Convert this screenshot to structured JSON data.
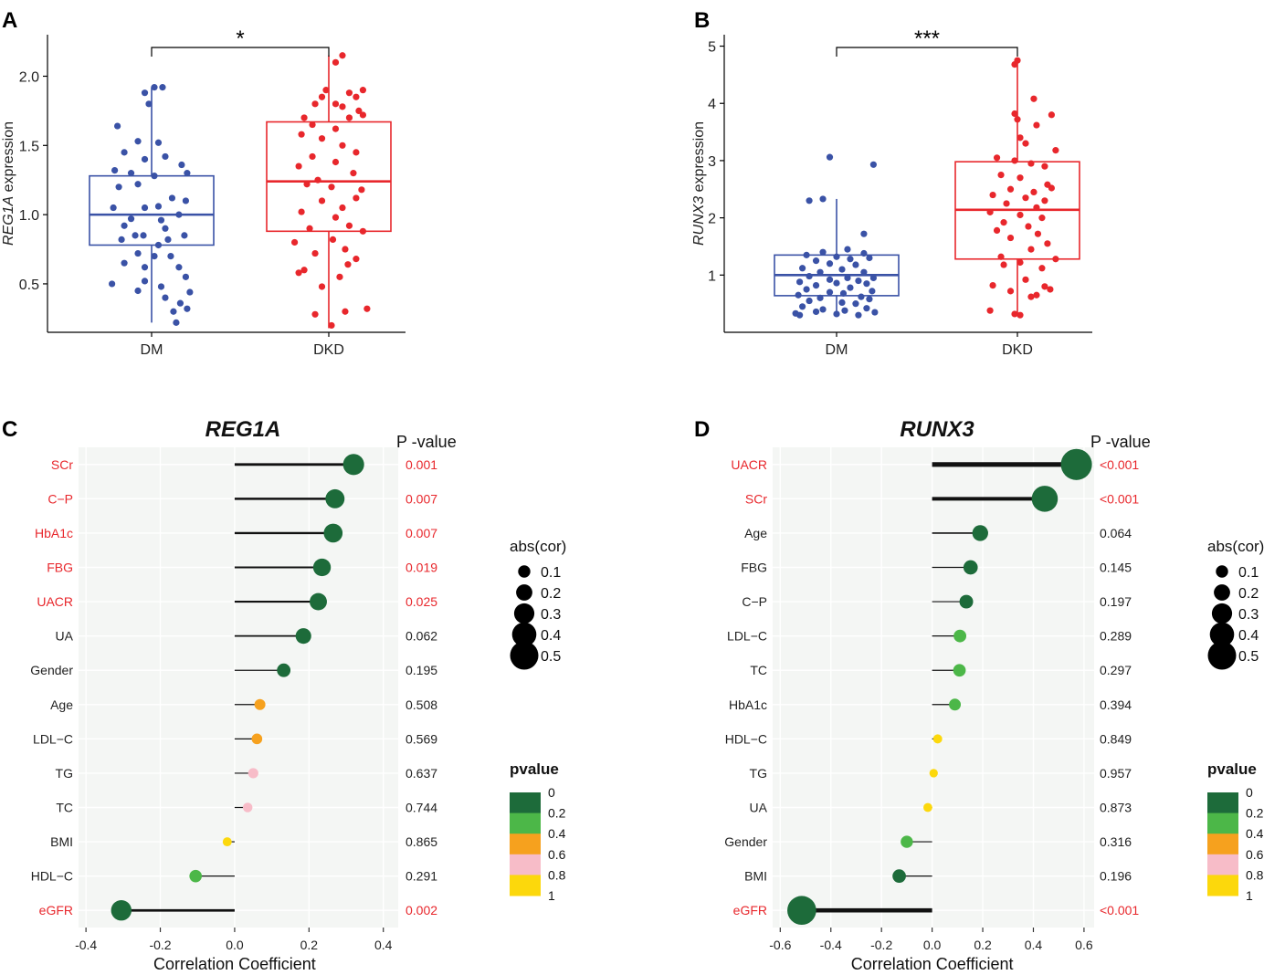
{
  "chart_data": [
    {
      "panel": "A",
      "type": "box-jitter",
      "ylabel_gene": "REG1A",
      "ylabel_suffix": " expression",
      "categories": [
        "DM",
        "DKD"
      ],
      "ylim": [
        0.15,
        2.3
      ],
      "yticks": [
        "0.5",
        "1.0",
        "1.5",
        "2.0"
      ],
      "significance": "*",
      "boxes": [
        {
          "name": "DM",
          "color": "#3a52a6",
          "min": 0.22,
          "q1": 0.78,
          "median": 1.0,
          "q3": 1.28,
          "max": 1.92
        },
        {
          "name": "DKD",
          "color": "#e8272c",
          "min": 0.18,
          "q1": 0.88,
          "median": 1.24,
          "q3": 1.67,
          "max": 2.15
        }
      ],
      "points": {
        "DM": [
          [
            0.02,
            1.92
          ],
          [
            -0.05,
            1.88
          ],
          [
            -0.02,
            1.8
          ],
          [
            0.08,
            1.92
          ],
          [
            -0.25,
            1.64
          ],
          [
            -0.1,
            1.53
          ],
          [
            0.05,
            1.52
          ],
          [
            0.1,
            1.42
          ],
          [
            -0.2,
            1.45
          ],
          [
            -0.05,
            1.4
          ],
          [
            0.22,
            1.36
          ],
          [
            0.26,
            1.3
          ],
          [
            -0.27,
            1.32
          ],
          [
            -0.15,
            1.3
          ],
          [
            0.02,
            1.28
          ],
          [
            -0.24,
            1.2
          ],
          [
            -0.1,
            1.22
          ],
          [
            0.15,
            1.12
          ],
          [
            0.25,
            1.1
          ],
          [
            -0.28,
            1.05
          ],
          [
            -0.05,
            1.05
          ],
          [
            0.05,
            1.06
          ],
          [
            0.2,
            1.0
          ],
          [
            -0.15,
            0.97
          ],
          [
            0.07,
            0.96
          ],
          [
            -0.2,
            0.92
          ],
          [
            0.1,
            0.9
          ],
          [
            -0.12,
            0.85
          ],
          [
            -0.06,
            0.85
          ],
          [
            -0.22,
            0.82
          ],
          [
            0.12,
            0.82
          ],
          [
            0.24,
            0.85
          ],
          [
            0.05,
            0.78
          ],
          [
            -0.1,
            0.72
          ],
          [
            0.02,
            0.7
          ],
          [
            0.14,
            0.7
          ],
          [
            -0.2,
            0.65
          ],
          [
            0.2,
            0.62
          ],
          [
            -0.05,
            0.62
          ],
          [
            0.25,
            0.55
          ],
          [
            0.07,
            0.48
          ],
          [
            -0.1,
            0.45
          ],
          [
            0.28,
            0.44
          ],
          [
            0.1,
            0.4
          ],
          [
            -0.05,
            0.52
          ],
          [
            0.21,
            0.36
          ],
          [
            0.26,
            0.32
          ],
          [
            0.16,
            0.3
          ],
          [
            -0.29,
            0.5
          ],
          [
            0.18,
            0.22
          ]
        ],
        "DKD": [
          [
            0.1,
            2.15
          ],
          [
            0.05,
            2.1
          ],
          [
            -0.02,
            1.9
          ],
          [
            0.15,
            1.88
          ],
          [
            0.25,
            1.9
          ],
          [
            -0.05,
            1.85
          ],
          [
            0.2,
            1.85
          ],
          [
            0.05,
            1.8
          ],
          [
            0.1,
            1.78
          ],
          [
            -0.1,
            1.8
          ],
          [
            0.22,
            1.75
          ],
          [
            -0.18,
            1.7
          ],
          [
            -0.12,
            1.65
          ],
          [
            0.05,
            1.62
          ],
          [
            0.15,
            1.7
          ],
          [
            0.25,
            1.72
          ],
          [
            -0.2,
            1.58
          ],
          [
            -0.05,
            1.55
          ],
          [
            0.1,
            1.5
          ],
          [
            0.2,
            1.45
          ],
          [
            -0.12,
            1.42
          ],
          [
            0.05,
            1.38
          ],
          [
            -0.22,
            1.35
          ],
          [
            0.18,
            1.3
          ],
          [
            -0.08,
            1.25
          ],
          [
            0.02,
            1.2
          ],
          [
            -0.16,
            1.22
          ],
          [
            0.24,
            1.18
          ],
          [
            -0.05,
            1.1
          ],
          [
            0.1,
            1.05
          ],
          [
            0.2,
            1.12
          ],
          [
            -0.2,
            1.02
          ],
          [
            0.05,
            0.98
          ],
          [
            0.15,
            0.92
          ],
          [
            -0.14,
            0.9
          ],
          [
            0.25,
            0.88
          ],
          [
            -0.25,
            0.8
          ],
          [
            0.03,
            0.82
          ],
          [
            0.12,
            0.75
          ],
          [
            -0.1,
            0.72
          ],
          [
            0.2,
            0.68
          ],
          [
            -0.18,
            0.6
          ],
          [
            0.14,
            0.64
          ],
          [
            -0.22,
            0.58
          ],
          [
            0.08,
            0.55
          ],
          [
            -0.05,
            0.48
          ],
          [
            0.28,
            0.32
          ],
          [
            0.12,
            0.3
          ],
          [
            -0.1,
            0.28
          ],
          [
            0.02,
            0.2
          ]
        ]
      }
    },
    {
      "panel": "B",
      "type": "box-jitter",
      "ylabel_gene": "RUNX3",
      "ylabel_suffix": " expression",
      "categories": [
        "DM",
        "DKD"
      ],
      "ylim": [
        0,
        5.2
      ],
      "yticks": [
        "1",
        "2",
        "3",
        "4",
        "5"
      ],
      "significance": "***",
      "boxes": [
        {
          "name": "DM",
          "color": "#3a52a6",
          "min": 0.28,
          "q1": 0.64,
          "median": 1.0,
          "q3": 1.35,
          "max": 2.33
        },
        {
          "name": "DKD",
          "color": "#e8272c",
          "min": 0.3,
          "q1": 1.28,
          "median": 2.14,
          "q3": 2.98,
          "max": 4.75
        }
      ],
      "points": {
        "DM": [
          [
            -0.05,
            3.06
          ],
          [
            0.27,
            2.93
          ],
          [
            -0.1,
            2.33
          ],
          [
            -0.2,
            2.3
          ],
          [
            0.2,
            1.72
          ],
          [
            0.08,
            1.45
          ],
          [
            -0.1,
            1.4
          ],
          [
            0.2,
            1.38
          ],
          [
            -0.22,
            1.35
          ],
          [
            0.0,
            1.32
          ],
          [
            0.24,
            1.3
          ],
          [
            -0.15,
            1.25
          ],
          [
            0.1,
            1.28
          ],
          [
            -0.05,
            1.2
          ],
          [
            0.14,
            1.18
          ],
          [
            -0.25,
            1.12
          ],
          [
            0.04,
            1.1
          ],
          [
            -0.12,
            1.05
          ],
          [
            0.2,
            1.05
          ],
          [
            0.27,
            0.95
          ],
          [
            -0.2,
            0.98
          ],
          [
            0.08,
            0.95
          ],
          [
            -0.05,
            0.92
          ],
          [
            0.16,
            0.9
          ],
          [
            -0.27,
            0.88
          ],
          [
            0.0,
            0.86
          ],
          [
            0.22,
            0.85
          ],
          [
            -0.15,
            0.82
          ],
          [
            0.1,
            0.78
          ],
          [
            -0.22,
            0.75
          ],
          [
            0.26,
            0.72
          ],
          [
            -0.05,
            0.7
          ],
          [
            0.05,
            0.68
          ],
          [
            -0.28,
            0.65
          ],
          [
            0.18,
            0.62
          ],
          [
            -0.12,
            0.6
          ],
          [
            0.24,
            0.58
          ],
          [
            -0.2,
            0.55
          ],
          [
            0.04,
            0.52
          ],
          [
            0.14,
            0.5
          ],
          [
            -0.25,
            0.45
          ],
          [
            0.22,
            0.42
          ],
          [
            -0.1,
            0.4
          ],
          [
            0.06,
            0.38
          ],
          [
            0.28,
            0.35
          ],
          [
            -0.27,
            0.3
          ],
          [
            0.0,
            0.32
          ],
          [
            -0.15,
            0.36
          ],
          [
            0.16,
            0.3
          ],
          [
            -0.3,
            0.33
          ]
        ],
        "DKD": [
          [
            0.0,
            4.75
          ],
          [
            -0.02,
            4.68
          ],
          [
            0.12,
            4.08
          ],
          [
            -0.02,
            3.82
          ],
          [
            0.25,
            3.8
          ],
          [
            0.0,
            3.72
          ],
          [
            0.14,
            3.62
          ],
          [
            0.02,
            3.4
          ],
          [
            0.06,
            3.3
          ],
          [
            0.28,
            3.18
          ],
          [
            -0.15,
            3.05
          ],
          [
            -0.02,
            3.0
          ],
          [
            0.1,
            2.95
          ],
          [
            0.2,
            2.9
          ],
          [
            -0.12,
            2.75
          ],
          [
            0.02,
            2.7
          ],
          [
            0.22,
            2.58
          ],
          [
            0.25,
            2.52
          ],
          [
            -0.05,
            2.5
          ],
          [
            0.12,
            2.45
          ],
          [
            -0.18,
            2.4
          ],
          [
            0.06,
            2.35
          ],
          [
            0.2,
            2.3
          ],
          [
            -0.08,
            2.25
          ],
          [
            0.14,
            2.18
          ],
          [
            -0.2,
            2.1
          ],
          [
            0.02,
            2.05
          ],
          [
            0.18,
            2.0
          ],
          [
            -0.1,
            1.92
          ],
          [
            0.08,
            1.85
          ],
          [
            -0.15,
            1.78
          ],
          [
            0.15,
            1.72
          ],
          [
            -0.05,
            1.65
          ],
          [
            0.22,
            1.55
          ],
          [
            0.1,
            1.45
          ],
          [
            -0.12,
            1.32
          ],
          [
            0.28,
            1.28
          ],
          [
            0.02,
            1.22
          ],
          [
            -0.1,
            1.18
          ],
          [
            0.18,
            1.12
          ],
          [
            0.06,
            0.92
          ],
          [
            -0.18,
            0.82
          ],
          [
            0.2,
            0.8
          ],
          [
            0.24,
            0.75
          ],
          [
            -0.05,
            0.72
          ],
          [
            0.14,
            0.65
          ],
          [
            0.1,
            0.62
          ],
          [
            -0.2,
            0.38
          ],
          [
            -0.02,
            0.32
          ],
          [
            0.02,
            0.3
          ]
        ]
      }
    },
    {
      "panel": "C",
      "type": "lollipop",
      "title": "REG1A",
      "xlabel": "Correlation Coefficient",
      "xlim": [
        -0.42,
        0.44
      ],
      "xticks": [
        "-0.4",
        "-0.2",
        "0.0",
        "0.2",
        "0.4"
      ],
      "pvalue_header": "P -value",
      "rows": [
        {
          "label": "SCr",
          "cor": 0.32,
          "p": "0.001",
          "sig": true
        },
        {
          "label": "C−P",
          "cor": 0.27,
          "p": "0.007",
          "sig": true
        },
        {
          "label": "HbA1c",
          "cor": 0.265,
          "p": "0.007",
          "sig": true
        },
        {
          "label": "FBG",
          "cor": 0.235,
          "p": "0.019",
          "sig": true
        },
        {
          "label": "UACR",
          "cor": 0.225,
          "p": "0.025",
          "sig": true
        },
        {
          "label": "UA",
          "cor": 0.185,
          "p": "0.062",
          "sig": false
        },
        {
          "label": "Gender",
          "cor": 0.132,
          "p": "0.195",
          "sig": false
        },
        {
          "label": "Age",
          "cor": 0.068,
          "p": "0.508",
          "sig": false
        },
        {
          "label": "LDL−C",
          "cor": 0.06,
          "p": "0.569",
          "sig": false
        },
        {
          "label": "TG",
          "cor": 0.05,
          "p": "0.637",
          "sig": false
        },
        {
          "label": "TC",
          "cor": 0.035,
          "p": "0.744",
          "sig": false
        },
        {
          "label": "BMI",
          "cor": -0.02,
          "p": "0.865",
          "sig": false
        },
        {
          "label": "HDL−C",
          "cor": -0.105,
          "p": "0.291",
          "sig": false
        },
        {
          "label": "eGFR",
          "cor": -0.305,
          "p": "0.002",
          "sig": true
        }
      ]
    },
    {
      "panel": "D",
      "type": "lollipop",
      "title": "RUNX3",
      "xlabel": "Correlation Coefficient",
      "xlim": [
        -0.63,
        0.64
      ],
      "xticks": [
        "-0.6",
        "-0.4",
        "-0.2",
        "0.0",
        "0.2",
        "0.4",
        "0.6"
      ],
      "pvalue_header": "P -value",
      "rows": [
        {
          "label": "UACR",
          "cor": 0.57,
          "p": "<0.001",
          "sig": true
        },
        {
          "label": "SCr",
          "cor": 0.445,
          "p": "<0.001",
          "sig": true
        },
        {
          "label": "Age",
          "cor": 0.19,
          "p": "0.064",
          "sig": false
        },
        {
          "label": "FBG",
          "cor": 0.152,
          "p": "0.145",
          "sig": false
        },
        {
          "label": "C−P",
          "cor": 0.135,
          "p": "0.197",
          "sig": false
        },
        {
          "label": "LDL−C",
          "cor": 0.11,
          "p": "0.289",
          "sig": false
        },
        {
          "label": "TC",
          "cor": 0.108,
          "p": "0.297",
          "sig": false
        },
        {
          "label": "HbA1c",
          "cor": 0.09,
          "p": "0.394",
          "sig": false
        },
        {
          "label": "HDL−C",
          "cor": 0.022,
          "p": "0.849",
          "sig": false
        },
        {
          "label": "TG",
          "cor": 0.006,
          "p": "0.957",
          "sig": false
        },
        {
          "label": "UA",
          "cor": -0.017,
          "p": "0.873",
          "sig": false
        },
        {
          "label": "Gender",
          "cor": -0.1,
          "p": "0.316",
          "sig": false
        },
        {
          "label": "BMI",
          "cor": -0.13,
          "p": "0.196",
          "sig": false
        },
        {
          "label": "eGFR",
          "cor": -0.515,
          "p": "<0.001",
          "sig": true
        }
      ]
    }
  ],
  "legends": {
    "size_title": "abs(cor)",
    "size_values": [
      "0.1",
      "0.2",
      "0.3",
      "0.4",
      "0.5"
    ],
    "color_title": "pvalue",
    "color_ticks": [
      "0",
      "0.2",
      "0.4",
      "0.6",
      "0.8",
      "1"
    ],
    "color_bands": [
      "#1d6b3a",
      "#4cb748",
      "#f6a11e",
      "#f7bcc8",
      "#fcd80c"
    ]
  },
  "panel_labels": [
    "A",
    "B",
    "C",
    "D"
  ],
  "colors": {
    "dm": "#3a52a6",
    "dkd": "#e8272c",
    "sig_text": "#e8272c",
    "panel_bg": "#f4f6f4"
  }
}
